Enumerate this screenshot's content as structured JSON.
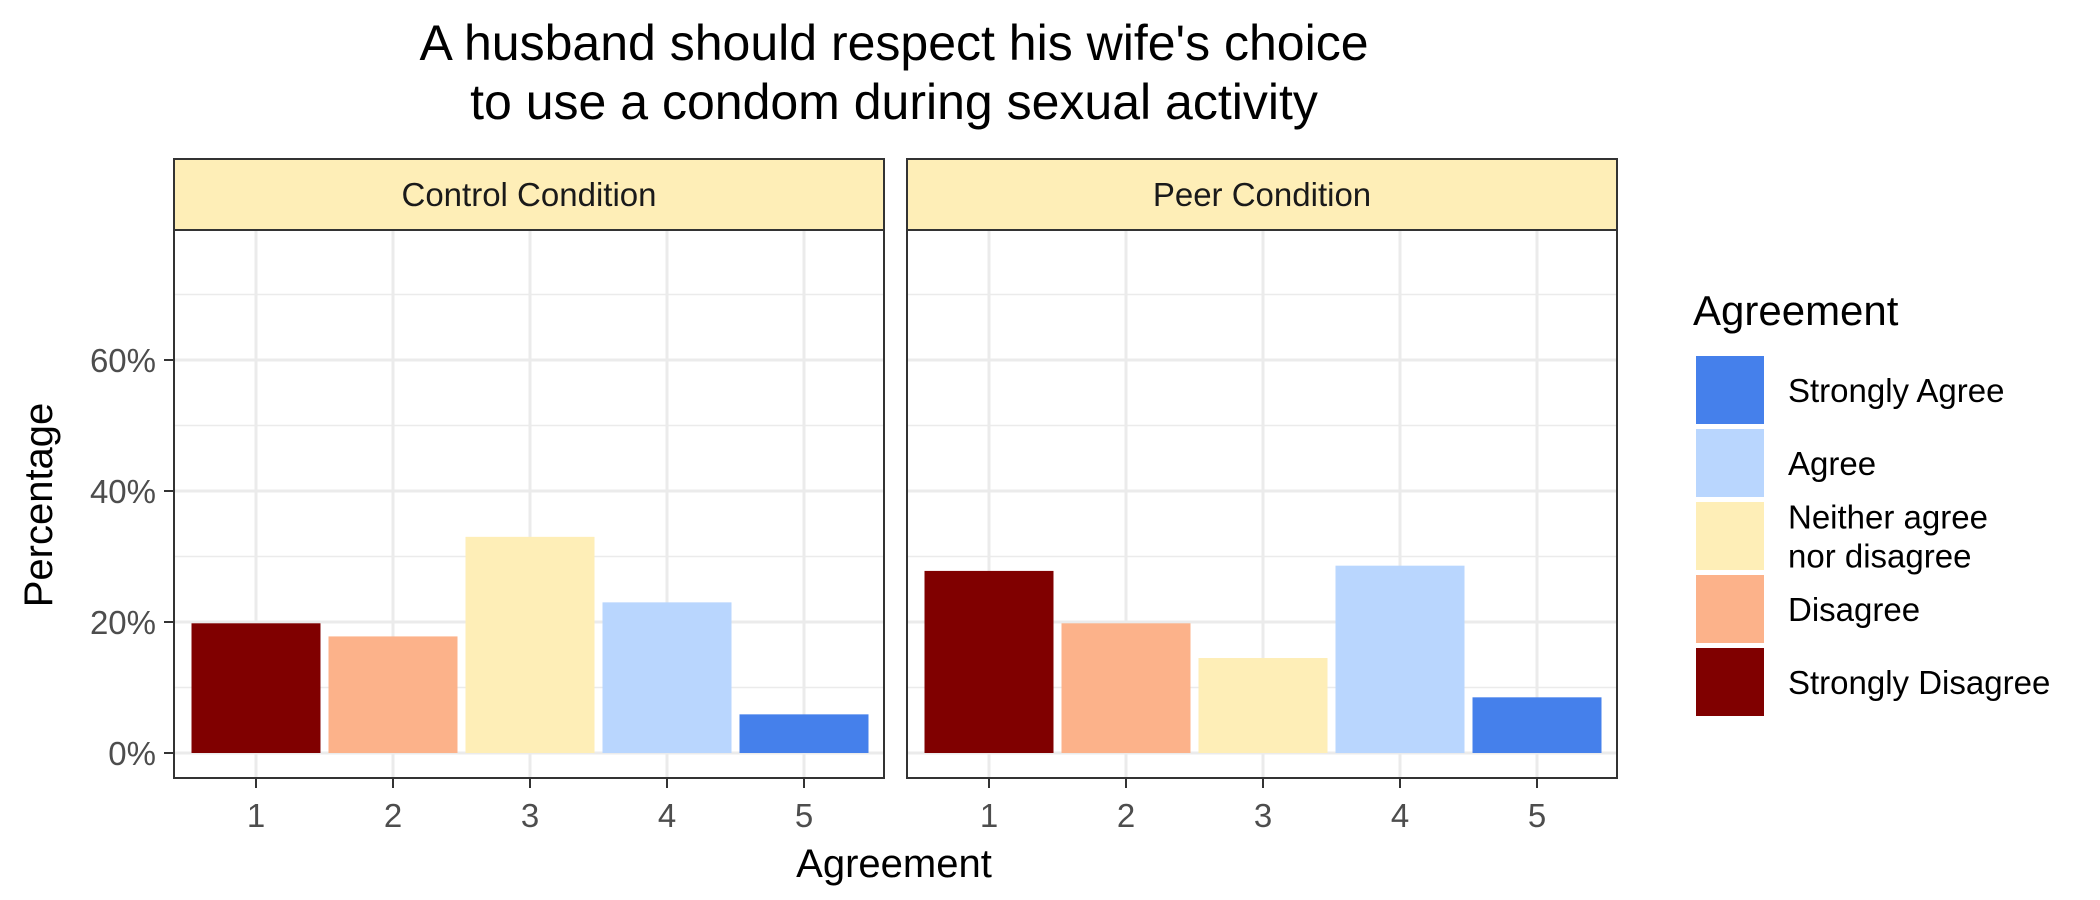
{
  "chart_data": {
    "type": "bar",
    "title_lines": [
      "A husband should respect his wife's choice",
      "to use a condom during sexual activity"
    ],
    "xlabel": "Agreement",
    "ylabel": "Percentage",
    "categories": [
      "1",
      "2",
      "3",
      "4",
      "5"
    ],
    "y_ticks": [
      "0%",
      "20%",
      "40%",
      "60%"
    ],
    "ylim": [
      0,
      80
    ],
    "grid": true,
    "panels": [
      {
        "name": "Control Condition",
        "values": [
          19.8,
          17.8,
          33.0,
          23.0,
          5.9
        ]
      },
      {
        "name": "Peer Condition",
        "values": [
          27.8,
          19.8,
          14.5,
          28.6,
          8.5
        ]
      }
    ],
    "category_colors": [
      "#800000",
      "#FCB28A",
      "#FEEEB7",
      "#B9D6FE",
      "#4580EB"
    ],
    "legend": {
      "title": "Agreement",
      "position": "right",
      "items": [
        {
          "label": "Strongly Agree",
          "color": "#4580EB"
        },
        {
          "label": "Agree",
          "color": "#B9D6FE"
        },
        {
          "label": "Neither agree\nnor disagree",
          "color": "#FEEEB7"
        },
        {
          "label": "Disagree",
          "color": "#FCB28A"
        },
        {
          "label": "Strongly Disagree",
          "color": "#800000"
        }
      ]
    },
    "strip_color": "#FEEEB7"
  }
}
